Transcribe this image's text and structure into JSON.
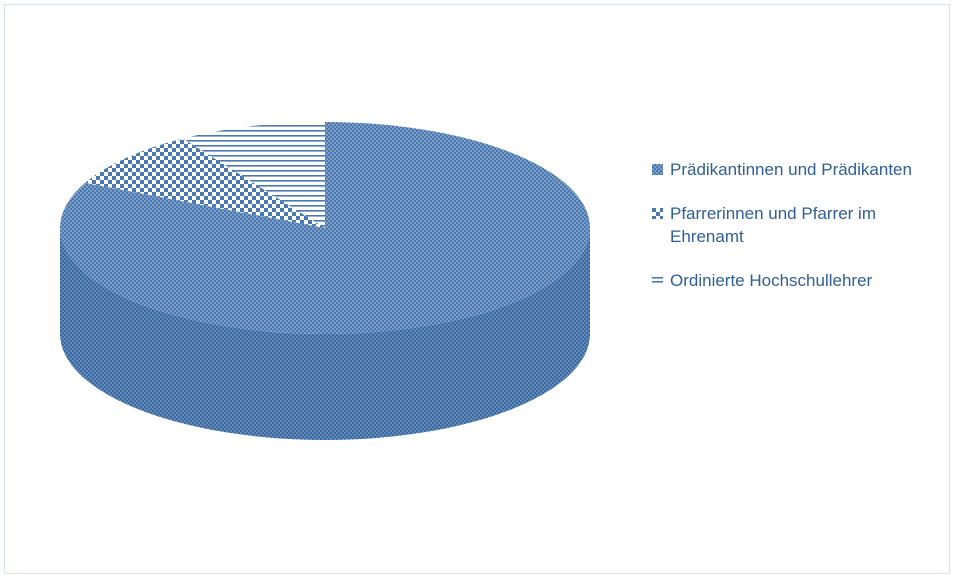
{
  "chart_data": {
    "type": "pie",
    "title": "",
    "slices": [
      {
        "label": "Prädikantinnen und Prädikanten",
        "value": 82,
        "pattern": "dots",
        "color": "#4a78b0"
      },
      {
        "label": "Pfarrerinnen und Pfarrer im Ehrenamt",
        "value": 9,
        "pattern": "checker",
        "color": "#4a78b0"
      },
      {
        "label": "Ordinierte Hochschullehrer",
        "value": 9,
        "pattern": "hlines",
        "color": "#4a78b0"
      }
    ],
    "legend_position": "right",
    "three_d": true
  },
  "legend": {
    "items": [
      {
        "label": "Prädikantinnen und Prädikanten"
      },
      {
        "label": "Pfarrerinnen und Pfarrer im Ehrenamt"
      },
      {
        "label": "Ordinierte Hochschullehrer"
      }
    ]
  }
}
